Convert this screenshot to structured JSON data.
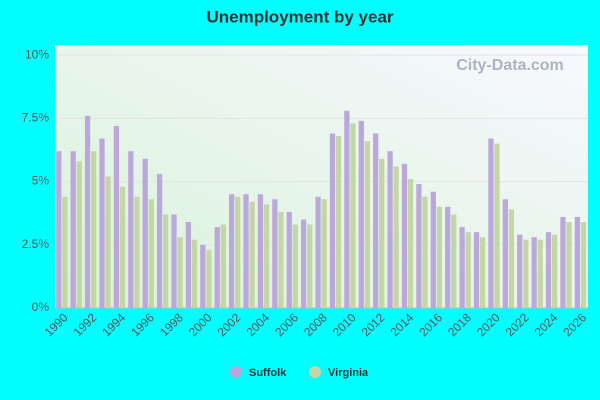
{
  "chart_data": {
    "type": "bar",
    "title": "Unemployment by year",
    "watermark": "City-Data.com",
    "categories": [
      "1990",
      null,
      "1992",
      null,
      "1994",
      null,
      "1996",
      null,
      "1998",
      null,
      "2000",
      null,
      "2002",
      null,
      "2004",
      null,
      "2006",
      null,
      "2008",
      null,
      "2010",
      null,
      "2012",
      null,
      "2014",
      null,
      "2016",
      null,
      "2018",
      null,
      "2020",
      null,
      "2022",
      null,
      "2024",
      null,
      "2026"
    ],
    "series": [
      {
        "name": "Suffolk",
        "color": "#bba8db",
        "values": [
          6.2,
          6.2,
          7.6,
          6.7,
          7.2,
          6.2,
          5.9,
          5.3,
          3.7,
          3.4,
          2.5,
          3.2,
          4.5,
          4.5,
          4.5,
          4.3,
          3.8,
          3.5,
          4.4,
          6.9,
          7.8,
          7.4,
          6.9,
          6.2,
          5.7,
          4.9,
          4.6,
          4.0,
          3.2,
          3.0,
          6.7,
          4.3,
          2.9,
          2.8,
          3.0,
          3.6,
          3.6
        ]
      },
      {
        "name": "Virginia",
        "color": "#c5d6a6",
        "values": [
          4.4,
          5.8,
          6.2,
          5.2,
          4.8,
          4.4,
          4.3,
          3.7,
          2.8,
          2.7,
          2.3,
          3.3,
          4.4,
          4.2,
          4.1,
          3.8,
          3.3,
          3.3,
          4.3,
          6.8,
          7.3,
          6.6,
          5.9,
          5.6,
          5.1,
          4.4,
          4.0,
          3.7,
          3.0,
          2.8,
          6.5,
          3.9,
          2.7,
          2.7,
          2.9,
          3.4,
          3.4
        ]
      }
    ],
    "ylim": [
      0,
      10.4
    ],
    "yticks": [
      {
        "value": 0,
        "label": "0%"
      },
      {
        "value": 2.5,
        "label": "2.5%"
      },
      {
        "value": 5,
        "label": "5%"
      },
      {
        "value": 7.5,
        "label": "7.5%"
      },
      {
        "value": 10,
        "label": "10%"
      }
    ],
    "grid": true,
    "legend": "bottom"
  }
}
